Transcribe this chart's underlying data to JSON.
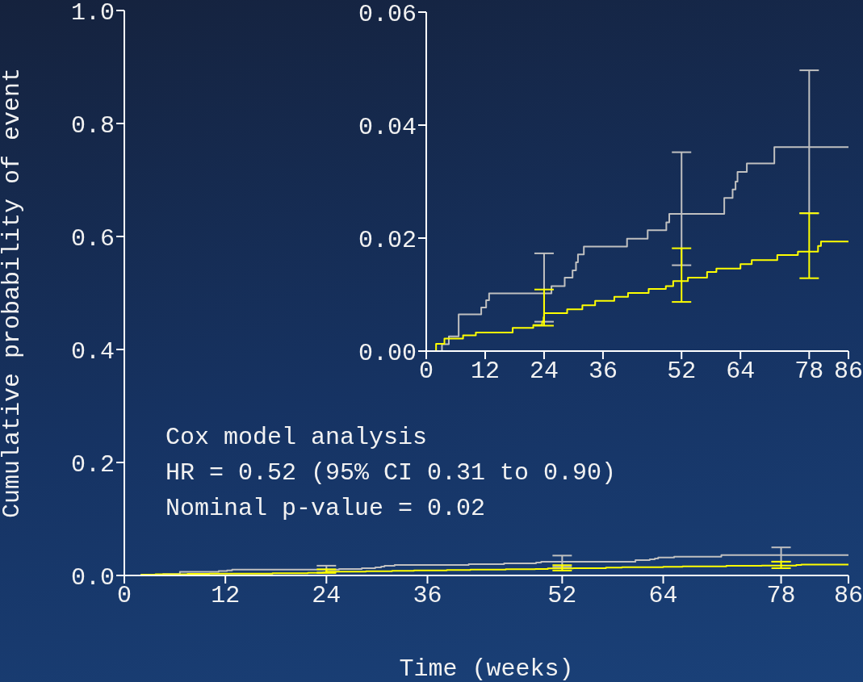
{
  "chart_data": [
    {
      "type": "step",
      "xlabel": "Time (weeks)",
      "ylabel": "Cumulative probability of event",
      "xlim": [
        0,
        86
      ],
      "xticks": [
        0,
        12,
        24,
        36,
        52,
        64,
        78,
        86
      ],
      "ylim": [
        0,
        1
      ],
      "yticks": [
        {
          "value": 0,
          "label": "0.0"
        },
        {
          "value": 0.2,
          "label": "0.2"
        },
        {
          "value": 0.4,
          "label": "0.4"
        },
        {
          "value": 0.6,
          "label": "0.6"
        },
        {
          "value": 0.8,
          "label": "0.8"
        },
        {
          "value": 1,
          "label": "1.0"
        }
      ],
      "annotations": [
        "Cox model analysis",
        "HR = 0.52 (95% CI 0.31 to 0.90)",
        "Nominal p-value = 0.02"
      ],
      "series": [
        {
          "color": "#c0c0c0",
          "x": [
            0,
            3.2,
            4.6,
            6.6,
            11.2,
            12.2,
            12.8,
            24,
            25.5,
            28.2,
            29.8,
            30.5,
            30.9,
            32.1,
            40.9,
            45.1,
            48.9,
            49.5,
            52,
            60.7,
            62.4,
            63,
            63.4,
            65.3,
            70.9,
            78,
            86
          ],
          "values": [
            0,
            0.0012,
            0.0026,
            0.0065,
            0.0077,
            0.009,
            0.0102,
            0.0102,
            0.0115,
            0.013,
            0.0143,
            0.0157,
            0.0171,
            0.0185,
            0.0199,
            0.0214,
            0.0228,
            0.0243,
            0.0243,
            0.0271,
            0.0286,
            0.03,
            0.0317,
            0.0332,
            0.0361,
            0.0361,
            0.0361
          ],
          "errors": [
            null,
            null,
            null,
            null,
            null,
            null,
            null,
            [
              0.0052,
              0.0173
            ],
            null,
            null,
            null,
            null,
            null,
            null,
            null,
            null,
            null,
            null,
            [
              0.0152,
              0.0352
            ],
            null,
            null,
            null,
            null,
            null,
            null,
            [
              0.0244,
              0.0497
            ],
            null
          ]
        },
        {
          "color": "#ffff00",
          "x": [
            0,
            2,
            3.7,
            7.5,
            10.1,
            17.6,
            21.8,
            23.6,
            23.9,
            24,
            28.7,
            31.8,
            34.4,
            38.3,
            41.1,
            45.3,
            48.8,
            50.3,
            52,
            53.3,
            57.2,
            59.1,
            64,
            66.3,
            71.5,
            75.7,
            78,
            79.8,
            80.4,
            86
          ],
          "values": [
            0,
            0.0013,
            0.0022,
            0.0028,
            0.0033,
            0.0041,
            0.0046,
            0.0052,
            0.006,
            0.0067,
            0.0074,
            0.0081,
            0.0089,
            0.0096,
            0.0103,
            0.011,
            0.0115,
            0.0124,
            0.0124,
            0.013,
            0.014,
            0.0146,
            0.0154,
            0.0161,
            0.017,
            0.0176,
            0.0176,
            0.0186,
            0.0194,
            0.0194
          ],
          "errors": [
            null,
            null,
            null,
            null,
            null,
            null,
            null,
            null,
            null,
            [
              0.0045,
              0.0109
            ],
            null,
            null,
            null,
            null,
            null,
            null,
            null,
            null,
            [
              0.0087,
              0.0182
            ],
            null,
            null,
            null,
            null,
            null,
            null,
            null,
            [
              0.0129,
              0.0244
            ],
            null,
            null,
            null
          ]
        }
      ]
    },
    {
      "type": "step",
      "xlim": [
        0,
        86
      ],
      "xticks": [
        0,
        12,
        24,
        36,
        52,
        64,
        78,
        86
      ],
      "ylim": [
        0,
        0.06
      ],
      "yticks": [
        {
          "value": 0,
          "label": "0.00"
        },
        {
          "value": 0.02,
          "label": "0.02"
        },
        {
          "value": 0.04,
          "label": "0.04"
        },
        {
          "value": 0.06,
          "label": "0.06"
        }
      ],
      "series": [
        {
          "color": "#c0c0c0",
          "x": [
            0,
            3.2,
            4.6,
            6.6,
            11.2,
            12.2,
            12.8,
            24,
            25.5,
            28.2,
            29.8,
            30.5,
            30.9,
            32.1,
            40.9,
            45.1,
            48.9,
            49.5,
            52,
            60.7,
            62.4,
            63,
            63.4,
            65.3,
            70.9,
            78,
            86
          ],
          "values": [
            0,
            0.0012,
            0.0026,
            0.0065,
            0.0077,
            0.009,
            0.0102,
            0.0102,
            0.0115,
            0.013,
            0.0143,
            0.0157,
            0.0171,
            0.0185,
            0.0199,
            0.0214,
            0.0228,
            0.0243,
            0.0243,
            0.0271,
            0.0286,
            0.03,
            0.0317,
            0.0332,
            0.0361,
            0.0361,
            0.0361
          ],
          "errors": [
            null,
            null,
            null,
            null,
            null,
            null,
            null,
            [
              0.0052,
              0.0173
            ],
            null,
            null,
            null,
            null,
            null,
            null,
            null,
            null,
            null,
            null,
            [
              0.0152,
              0.0352
            ],
            null,
            null,
            null,
            null,
            null,
            null,
            [
              0.0244,
              0.0497
            ],
            null
          ]
        },
        {
          "color": "#ffff00",
          "x": [
            0,
            2,
            3.7,
            7.5,
            10.1,
            17.6,
            21.8,
            23.6,
            23.9,
            24,
            28.7,
            31.8,
            34.4,
            38.3,
            41.1,
            45.3,
            48.8,
            50.3,
            52,
            53.3,
            57.2,
            59.1,
            64,
            66.3,
            71.5,
            75.7,
            78,
            79.8,
            80.4,
            86
          ],
          "values": [
            0,
            0.0013,
            0.0022,
            0.0028,
            0.0033,
            0.0041,
            0.0046,
            0.0052,
            0.006,
            0.0067,
            0.0074,
            0.0081,
            0.0089,
            0.0096,
            0.0103,
            0.011,
            0.0115,
            0.0124,
            0.0124,
            0.013,
            0.014,
            0.0146,
            0.0154,
            0.0161,
            0.017,
            0.0176,
            0.0176,
            0.0186,
            0.0194,
            0.0194
          ],
          "errors": [
            null,
            null,
            null,
            null,
            null,
            null,
            null,
            null,
            null,
            [
              0.0045,
              0.0109
            ],
            null,
            null,
            null,
            null,
            null,
            null,
            null,
            null,
            [
              0.0087,
              0.0182
            ],
            null,
            null,
            null,
            null,
            null,
            null,
            null,
            [
              0.0129,
              0.0244
            ],
            null,
            null,
            null
          ]
        }
      ]
    }
  ]
}
